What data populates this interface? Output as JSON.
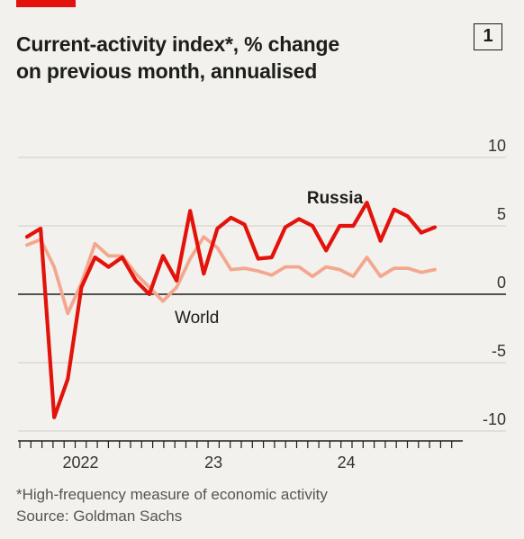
{
  "header": {
    "title_line1": "Current-activity index*, % change",
    "title_line2": "on previous month, annualised",
    "badge": "1"
  },
  "footer": {
    "note": "*High-frequency measure of economic activity",
    "source": "Source: Goldman Sachs"
  },
  "chart_data": {
    "type": "line",
    "ylim": [
      -10,
      10
    ],
    "y_ticks": [
      {
        "value": 10,
        "label": "10"
      },
      {
        "value": 5,
        "label": "5"
      },
      {
        "value": 0,
        "label": "0"
      },
      {
        "value": -5,
        "label": "-5"
      },
      {
        "value": -10,
        "label": "-10"
      }
    ],
    "x_ticks": [
      {
        "label": "2022",
        "month_index": 5
      },
      {
        "label": "23",
        "month_index": 17
      },
      {
        "label": "24",
        "month_index": 29
      }
    ],
    "month_count": 40,
    "colors": {
      "russia": "#e3120b",
      "world": "#f4a78f",
      "axis": "#1d1d1b",
      "grid": "#cfcdc6"
    },
    "series": [
      {
        "name": "Russia",
        "color": "#e3120b",
        "values": [
          4.2,
          4.8,
          -9.0,
          -6.2,
          0.5,
          2.7,
          2.0,
          2.7,
          1.0,
          0.0,
          2.8,
          1.0,
          6.1,
          1.5,
          4.8,
          5.6,
          5.1,
          2.6,
          2.7,
          4.9,
          5.5,
          5.0,
          3.2,
          5.0,
          5.0,
          6.7,
          3.9,
          6.2,
          5.7,
          4.5,
          4.9
        ]
      },
      {
        "name": "World",
        "color": "#f4a78f",
        "values": [
          3.6,
          4.0,
          2.0,
          -1.4,
          0.8,
          3.7,
          2.8,
          2.8,
          1.5,
          0.5,
          -0.5,
          0.5,
          2.6,
          4.2,
          3.4,
          1.8,
          1.9,
          1.7,
          1.4,
          2.0,
          2.0,
          1.3,
          2.0,
          1.8,
          1.3,
          2.7,
          1.3,
          1.9,
          1.9,
          1.6,
          1.8
        ]
      }
    ]
  }
}
